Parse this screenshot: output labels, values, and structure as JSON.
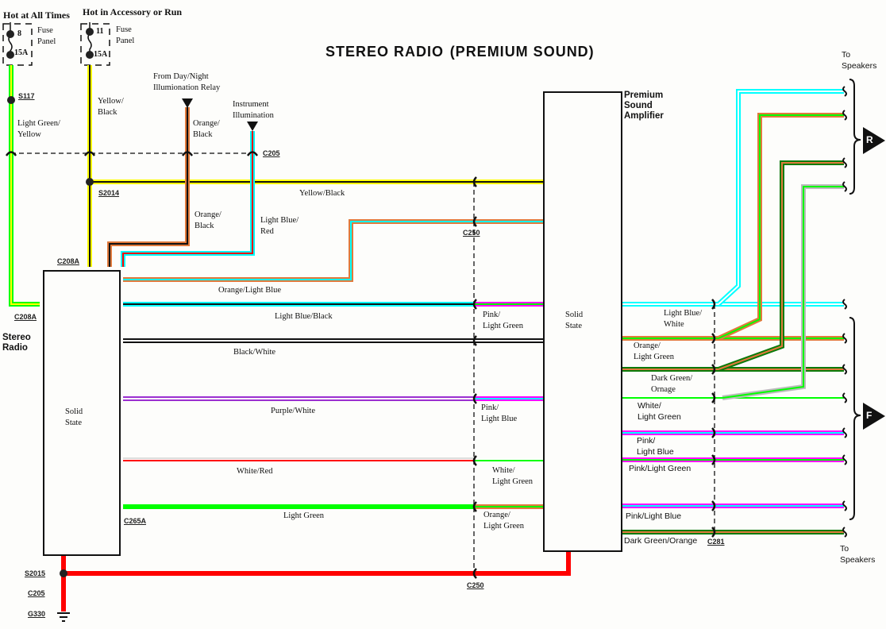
{
  "title": {
    "main": "STEREO RADIO",
    "sub": "(PREMIUM SOUND)"
  },
  "power": {
    "hot_all_times": "Hot at All Times",
    "hot_acc_run": "Hot in Accessory or Run",
    "fuse1": {
      "number": "8",
      "rating": "15A",
      "label": "Fuse\nPanel"
    },
    "fuse2": {
      "number": "11",
      "rating": "15A",
      "label": "Fuse\nPanel"
    },
    "day_night": "From Day/Night\nIllumionation Relay",
    "instrument": "Instrument\nIllumination"
  },
  "components": {
    "radio": {
      "name": "Stereo\nRadio",
      "inner": "Solid\nState"
    },
    "amp": {
      "name": "Premium\nSound\nAmplifier",
      "inner": "Solid\nState"
    }
  },
  "connectors": {
    "s117": "S117",
    "c205": "C205",
    "s2014": "S2014",
    "c208a_top": "C208A",
    "c208a_left": "C208A",
    "c250_top": "C250",
    "c265a": "C265A",
    "s2015": "S2015",
    "c205_bottom": "C205",
    "g330": "G330",
    "c250_bottom": "C250",
    "c281": "C281"
  },
  "wire_labels": {
    "lg_yellow": "Light Green/\nYellow",
    "yellow_black_v": "Yellow/\nBlack",
    "orange_black_top": "Orange/\nBlack",
    "orange_black_low": "Orange/\nBlack",
    "lb_red": "Light Blue/\nRed",
    "yellow_black_h": "Yellow/Black",
    "orange_lb": "Orange/Light Blue",
    "lb_black": "Light Blue/Black",
    "black_white": "Black/White",
    "purple_white": "Purple/White",
    "white_red": "White/Red",
    "light_green": "Light Green",
    "pink_lg_1": "Pink/\nLight Green",
    "pink_lb_1": "Pink/\nLight Blue",
    "white_lg_1": "White/\nLight Green",
    "orange_lg_1": "Orange/\nLight Green",
    "lb_white": "Light Blue/\nWhite",
    "orange_lg_2": "Orange/\nLight Green",
    "dg_orange_1": "Dark Green/\nOrnage",
    "white_lg_2": "White/\nLight Green",
    "pink_lb_2": "Pink/\nLight Blue",
    "pink_lg_2": "Pink/Light Green",
    "pink_lb_3": "Pink/Light Blue",
    "dg_orange_2": "Dark Green/Orange"
  },
  "speakers": {
    "top": "To\nSpeakers",
    "bottom": "To\nSpeakers",
    "rear": "R",
    "front": "F"
  },
  "colors": {
    "light_green": "#00ff00",
    "yellow": "#ffff00",
    "black": "#111111",
    "orange": "#e07a3c",
    "light_blue": "#00ffff",
    "red": "#ff0000",
    "pink": "#ff00ff",
    "purple": "#9b2fd0",
    "white": "#ffffff",
    "dark_green": "#0a7a0a",
    "grey": "#bbbbbb"
  }
}
